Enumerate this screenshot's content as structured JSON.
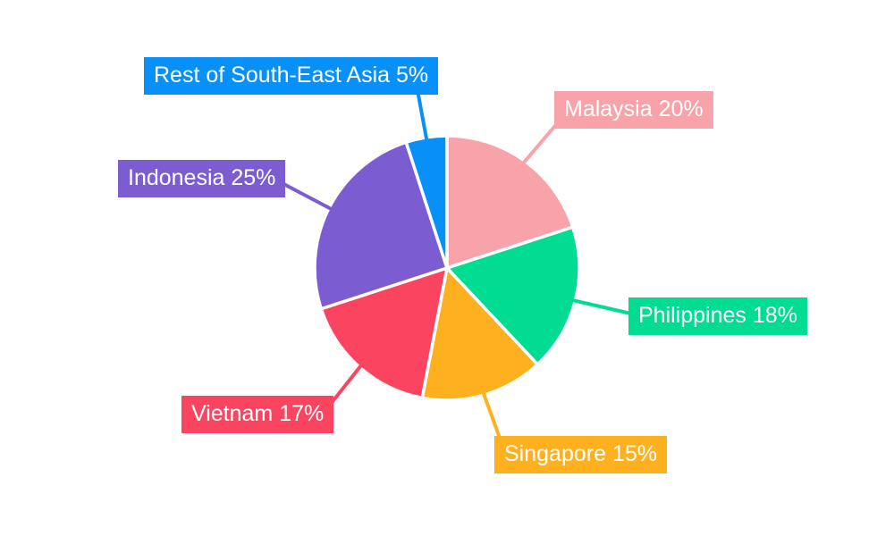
{
  "chart_data": {
    "type": "pie",
    "title": "",
    "unit": "%",
    "direction": "clockwise",
    "start_angle_deg": 0,
    "legend_position": "outside-callout-labels",
    "background": "#FFFFFF",
    "label_text_color": "#FFFFFF",
    "slice_border_color": "#FFFFFF",
    "categories": [
      "Malaysia",
      "Philippines",
      "Singapore",
      "Vietnam",
      "Indonesia",
      "Rest of South-East Asia"
    ],
    "values": [
      20,
      18,
      15,
      17,
      25,
      5
    ],
    "slices": [
      {
        "label": "Malaysia",
        "value": 20,
        "display": "Malaysia 20%",
        "color": "#F7A3A9"
      },
      {
        "label": "Philippines",
        "value": 18,
        "display": "Philippines 18%",
        "color": "#00DC92"
      },
      {
        "label": "Singapore",
        "value": 15,
        "display": "Singapore 15%",
        "color": "#FFB01E"
      },
      {
        "label": "Vietnam",
        "value": 17,
        "display": "Vietnam 17%",
        "color": "#FB4560"
      },
      {
        "label": "Indonesia",
        "value": 25,
        "display": "Indonesia 25%",
        "color": "#7B5DD1"
      },
      {
        "label": "Rest of South-East Asia",
        "value": 5,
        "display": "Rest of South-East Asia 5%",
        "color": "#0790F8"
      }
    ]
  }
}
